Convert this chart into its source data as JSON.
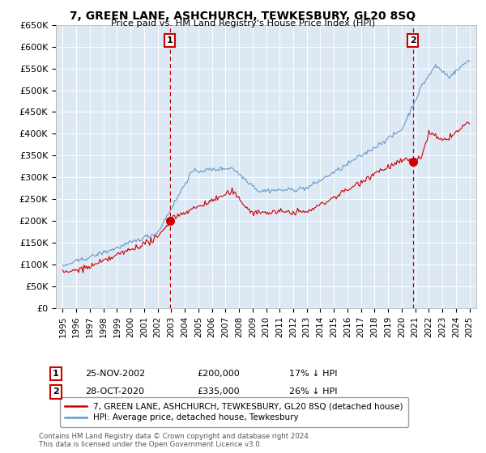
{
  "title": "7, GREEN LANE, ASHCHURCH, TEWKESBURY, GL20 8SQ",
  "subtitle": "Price paid vs. HM Land Registry's House Price Index (HPI)",
  "ylim": [
    0,
    650000
  ],
  "yticks": [
    0,
    50000,
    100000,
    150000,
    200000,
    250000,
    300000,
    350000,
    400000,
    450000,
    500000,
    550000,
    600000,
    650000
  ],
  "ytick_labels": [
    "£0",
    "£50K",
    "£100K",
    "£150K",
    "£200K",
    "£250K",
    "£300K",
    "£350K",
    "£400K",
    "£450K",
    "£500K",
    "£550K",
    "£600K",
    "£650K"
  ],
  "xlim_start": 1994.5,
  "xlim_end": 2025.5,
  "xticks": [
    1995,
    1996,
    1997,
    1998,
    1999,
    2000,
    2001,
    2002,
    2003,
    2004,
    2005,
    2006,
    2007,
    2008,
    2009,
    2010,
    2011,
    2012,
    2013,
    2014,
    2015,
    2016,
    2017,
    2018,
    2019,
    2020,
    2021,
    2022,
    2023,
    2024,
    2025
  ],
  "sale1_year": 2002.9,
  "sale1_price": 200000,
  "sale1_label": "1",
  "sale1_date": "25-NOV-2002",
  "sale1_amount": "£200,000",
  "sale1_pct": "17% ↓ HPI",
  "sale2_year": 2020.83,
  "sale2_price": 335000,
  "sale2_label": "2",
  "sale2_date": "28-OCT-2020",
  "sale2_amount": "£335,000",
  "sale2_pct": "26% ↓ HPI",
  "hpi_color": "#6699cc",
  "sale_color": "#cc0000",
  "vline_color": "#cc0000",
  "bg_chart": "#dde8f5",
  "background_color": "#ffffff",
  "grid_color": "#ffffff",
  "legend_line1": "7, GREEN LANE, ASHCHURCH, TEWKESBURY, GL20 8SQ (detached house)",
  "legend_line2": "HPI: Average price, detached house, Tewkesbury",
  "footnote": "Contains HM Land Registry data © Crown copyright and database right 2024.\nThis data is licensed under the Open Government Licence v3.0."
}
